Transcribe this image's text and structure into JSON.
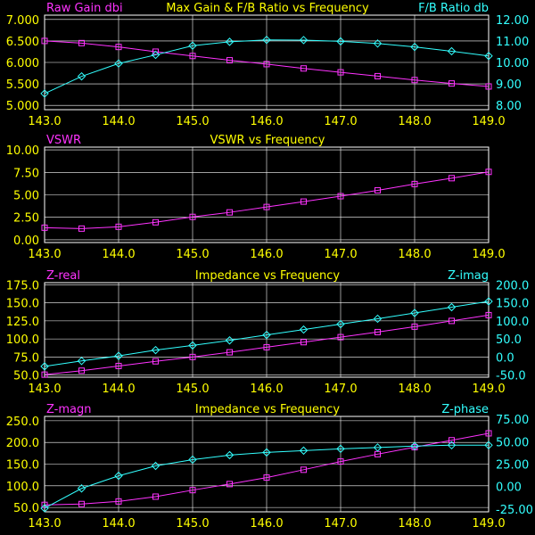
{
  "colors": {
    "background": "#000000",
    "grid": "#ffffff",
    "magenta": "#ff33ff",
    "cyan": "#33ffff",
    "title": "#ffff00",
    "tick": "#ffff00"
  },
  "chart_data": [
    {
      "type": "line",
      "title": "Max Gain & F/B Ratio vs Frequency",
      "left_label": "Raw Gain dbi",
      "right_label": "F/B Ratio db",
      "x_ticks": [
        "143.0",
        "144.0",
        "145.0",
        "146.0",
        "147.0",
        "148.0",
        "149.0"
      ],
      "xlim": [
        143.0,
        149.0
      ],
      "left_ticks": [
        "7.000",
        "6.500",
        "6.000",
        "5.500",
        "5.000"
      ],
      "left_ylim": [
        4.9,
        7.1
      ],
      "right_ticks": [
        "12.00",
        "11.00",
        "10.00",
        "9.00",
        "8.00"
      ],
      "right_ylim": [
        7.8,
        12.2
      ],
      "grid": true,
      "x": [
        143.0,
        143.5,
        144.0,
        144.5,
        145.0,
        145.5,
        146.0,
        146.5,
        147.0,
        147.5,
        148.0,
        148.5,
        149.0
      ],
      "series": [
        {
          "name": "Raw Gain dbi",
          "axis": "left",
          "marker": "square",
          "color": "magenta",
          "values": [
            6.5,
            6.45,
            6.36,
            6.25,
            6.15,
            6.05,
            5.96,
            5.86,
            5.77,
            5.68,
            5.59,
            5.51,
            5.44
          ]
        },
        {
          "name": "F/B Ratio db",
          "axis": "right",
          "marker": "diamond",
          "color": "cyan",
          "values": [
            8.55,
            9.35,
            9.95,
            10.35,
            10.78,
            10.96,
            11.05,
            11.04,
            10.98,
            10.88,
            10.72,
            10.52,
            10.3
          ]
        }
      ]
    },
    {
      "type": "line",
      "title": "VSWR vs Frequency",
      "left_label": "VSWR",
      "right_label": "",
      "x_ticks": [
        "143.0",
        "144.0",
        "145.0",
        "146.0",
        "147.0",
        "148.0",
        "149.0"
      ],
      "xlim": [
        143.0,
        149.0
      ],
      "left_ticks": [
        "10.00",
        "7.50",
        "5.00",
        "2.50",
        "0.00"
      ],
      "left_ylim": [
        -0.3,
        10.3
      ],
      "right_ticks": [],
      "grid": true,
      "x": [
        143.0,
        143.5,
        144.0,
        144.5,
        145.0,
        145.5,
        146.0,
        146.5,
        147.0,
        147.5,
        148.0,
        148.5,
        149.0
      ],
      "series": [
        {
          "name": "VSWR",
          "axis": "left",
          "marker": "square",
          "color": "magenta",
          "values": [
            1.35,
            1.25,
            1.45,
            1.95,
            2.55,
            3.05,
            3.65,
            4.25,
            4.85,
            5.5,
            6.2,
            6.85,
            7.55
          ]
        }
      ]
    },
    {
      "type": "line",
      "title": "Impedance vs Frequency",
      "left_label": "Z-real",
      "right_label": "Z-imag",
      "x_ticks": [
        "143.0",
        "144.0",
        "145.0",
        "146.0",
        "147.0",
        "148.0",
        "149.0"
      ],
      "xlim": [
        143.0,
        149.0
      ],
      "left_ticks": [
        "175.0",
        "150.0",
        "125.0",
        "100.0",
        "75.0",
        "50.0"
      ],
      "left_ylim": [
        47.0,
        178.0
      ],
      "right_ticks": [
        "200.0",
        "150.0",
        "100.0",
        "50.0",
        "0.0",
        "-50.0"
      ],
      "right_ylim": [
        -56.0,
        206.0
      ],
      "grid": true,
      "x": [
        143.0,
        143.5,
        144.0,
        144.5,
        145.0,
        145.5,
        146.0,
        146.5,
        147.0,
        147.5,
        148.0,
        148.5,
        149.0
      ],
      "series": [
        {
          "name": "Z-real",
          "axis": "left",
          "marker": "square",
          "color": "magenta",
          "values": [
            50.5,
            56.0,
            62.5,
            69.0,
            75.0,
            81.5,
            88.5,
            95.5,
            102.5,
            109.5,
            117.0,
            125.0,
            133.0
          ]
        },
        {
          "name": "Z-imag",
          "axis": "right",
          "marker": "diamond",
          "color": "cyan",
          "values": [
            -26.0,
            -11.0,
            3.0,
            19.0,
            32.0,
            46.0,
            61.0,
            76.0,
            91.0,
            106.0,
            122.0,
            138.0,
            154.0
          ]
        }
      ]
    },
    {
      "type": "line",
      "title": "Impedance vs Frequency",
      "left_label": "Z-magn",
      "right_label": "Z-phase",
      "x_ticks": [
        "143.0",
        "144.0",
        "145.0",
        "146.0",
        "147.0",
        "148.0",
        "149.0"
      ],
      "xlim": [
        143.0,
        149.0
      ],
      "left_ticks": [
        "250.0",
        "200.0",
        "150.0",
        "100.0",
        "50.0"
      ],
      "left_ylim": [
        40.0,
        260.0
      ],
      "right_ticks": [
        "75.00",
        "50.00",
        "25.00",
        "0.00",
        "-25.00"
      ],
      "right_ylim": [
        -28.0,
        78.0
      ],
      "grid": true,
      "x": [
        143.0,
        143.5,
        144.0,
        144.5,
        145.0,
        145.5,
        146.0,
        146.5,
        147.0,
        147.5,
        148.0,
        148.5,
        149.0
      ],
      "series": [
        {
          "name": "Z-magn",
          "axis": "left",
          "marker": "square",
          "color": "magenta",
          "values": [
            56,
            58,
            64,
            75,
            90,
            104,
            119,
            137,
            156,
            173,
            189,
            205,
            221
          ]
        },
        {
          "name": "Z-phase",
          "axis": "right",
          "marker": "diamond",
          "color": "cyan",
          "values": [
            -24,
            -2,
            12,
            23,
            30,
            35,
            38,
            40,
            42,
            43.5,
            45,
            46,
            46
          ]
        }
      ]
    }
  ]
}
